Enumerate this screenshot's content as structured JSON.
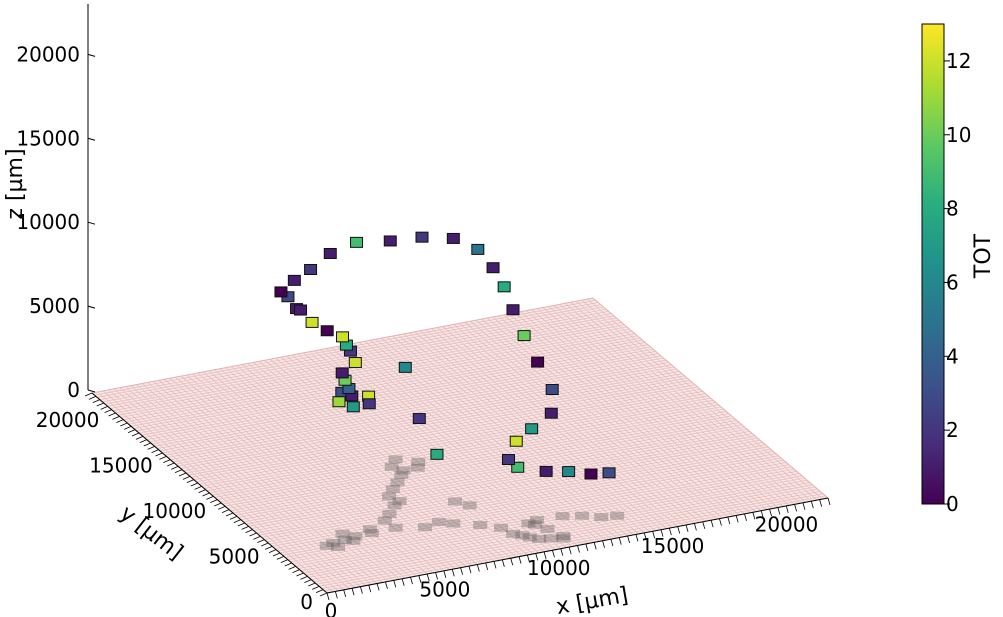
{
  "chart_data": {
    "type": "scatter",
    "projection": "3d",
    "title": "",
    "xlabel": "x [µm]",
    "ylabel": "y [µm]",
    "zlabel": "z [µm]",
    "xlim": [
      0,
      22000
    ],
    "ylim": [
      0,
      22000
    ],
    "zlim": [
      0,
      23000
    ],
    "x_ticks": [
      "0",
      "5000",
      "10000",
      "15000",
      "20000"
    ],
    "y_ticks": [
      "0",
      "5000",
      "10000",
      "15000",
      "20000"
    ],
    "z_ticks": [
      "0",
      "5000",
      "10000",
      "15000",
      "20000"
    ],
    "grid": false,
    "plane": {
      "z": 0,
      "color": "#e3b3b3"
    },
    "shadow": {
      "color": "#555555"
    },
    "colorbar": {
      "label": "TOT",
      "min": 0,
      "max": 13,
      "ticks": [
        "0",
        "2",
        "4",
        "6",
        "8",
        "10",
        "12"
      ],
      "colormap": "viridis"
    },
    "series": [
      {
        "marker": "voxel",
        "points": [
          [
            8500,
            17000,
            0,
            11
          ],
          [
            9000,
            17800,
            0,
            3
          ],
          [
            9800,
            17000,
            0,
            12
          ],
          [
            9500,
            16300,
            0,
            2
          ],
          [
            8800,
            16300,
            0,
            7
          ],
          [
            8500,
            15800,
            1000,
            1
          ],
          [
            8000,
            15000,
            2000,
            4
          ],
          [
            7500,
            14300,
            3000,
            10
          ],
          [
            7000,
            13500,
            4000,
            1
          ],
          [
            7200,
            12700,
            5000,
            12
          ],
          [
            6800,
            12300,
            6000,
            2
          ],
          [
            6200,
            11400,
            7000,
            8
          ],
          [
            5700,
            10700,
            8000,
            12
          ],
          [
            4700,
            10000,
            9000,
            0
          ],
          [
            3800,
            9500,
            10000,
            12
          ],
          [
            3200,
            9300,
            11000,
            1
          ],
          [
            2600,
            9200,
            12000,
            3
          ],
          [
            2200,
            9000,
            12500,
            0
          ],
          [
            2600,
            8600,
            13300,
            1
          ],
          [
            3500,
            9000,
            13500,
            2
          ],
          [
            4600,
            9500,
            13900,
            1
          ],
          [
            5800,
            9600,
            14200,
            9
          ],
          [
            7000,
            9000,
            14300,
            1
          ],
          [
            8300,
            8800,
            14300,
            2
          ],
          [
            9300,
            8000,
            14400,
            1
          ],
          [
            10000,
            7200,
            14000,
            5
          ],
          [
            10200,
            6200,
            13400,
            1
          ],
          [
            10500,
            5800,
            12400,
            8
          ],
          [
            10700,
            5400,
            11200,
            1
          ],
          [
            11000,
            5000,
            9800,
            10
          ],
          [
            11500,
            4800,
            8200,
            0
          ],
          [
            12000,
            4500,
            6600,
            3
          ],
          [
            12100,
            4800,
            5000,
            1
          ],
          [
            11800,
            6000,
            3500,
            7
          ],
          [
            11500,
            6800,
            2400,
            12
          ],
          [
            11300,
            7100,
            1200,
            2
          ],
          [
            11800,
            7300,
            500,
            9
          ],
          [
            13000,
            7200,
            0,
            1
          ],
          [
            13800,
            6800,
            0,
            6
          ],
          [
            14500,
            6200,
            0,
            0
          ],
          [
            15200,
            6000,
            0,
            3
          ],
          [
            9800,
            10600,
            0,
            8
          ],
          [
            9400,
            11400,
            1800,
            2
          ],
          [
            7800,
            9300,
            6400,
            6
          ],
          [
            3400,
            10100,
            10600,
            1
          ]
        ]
      }
    ]
  }
}
